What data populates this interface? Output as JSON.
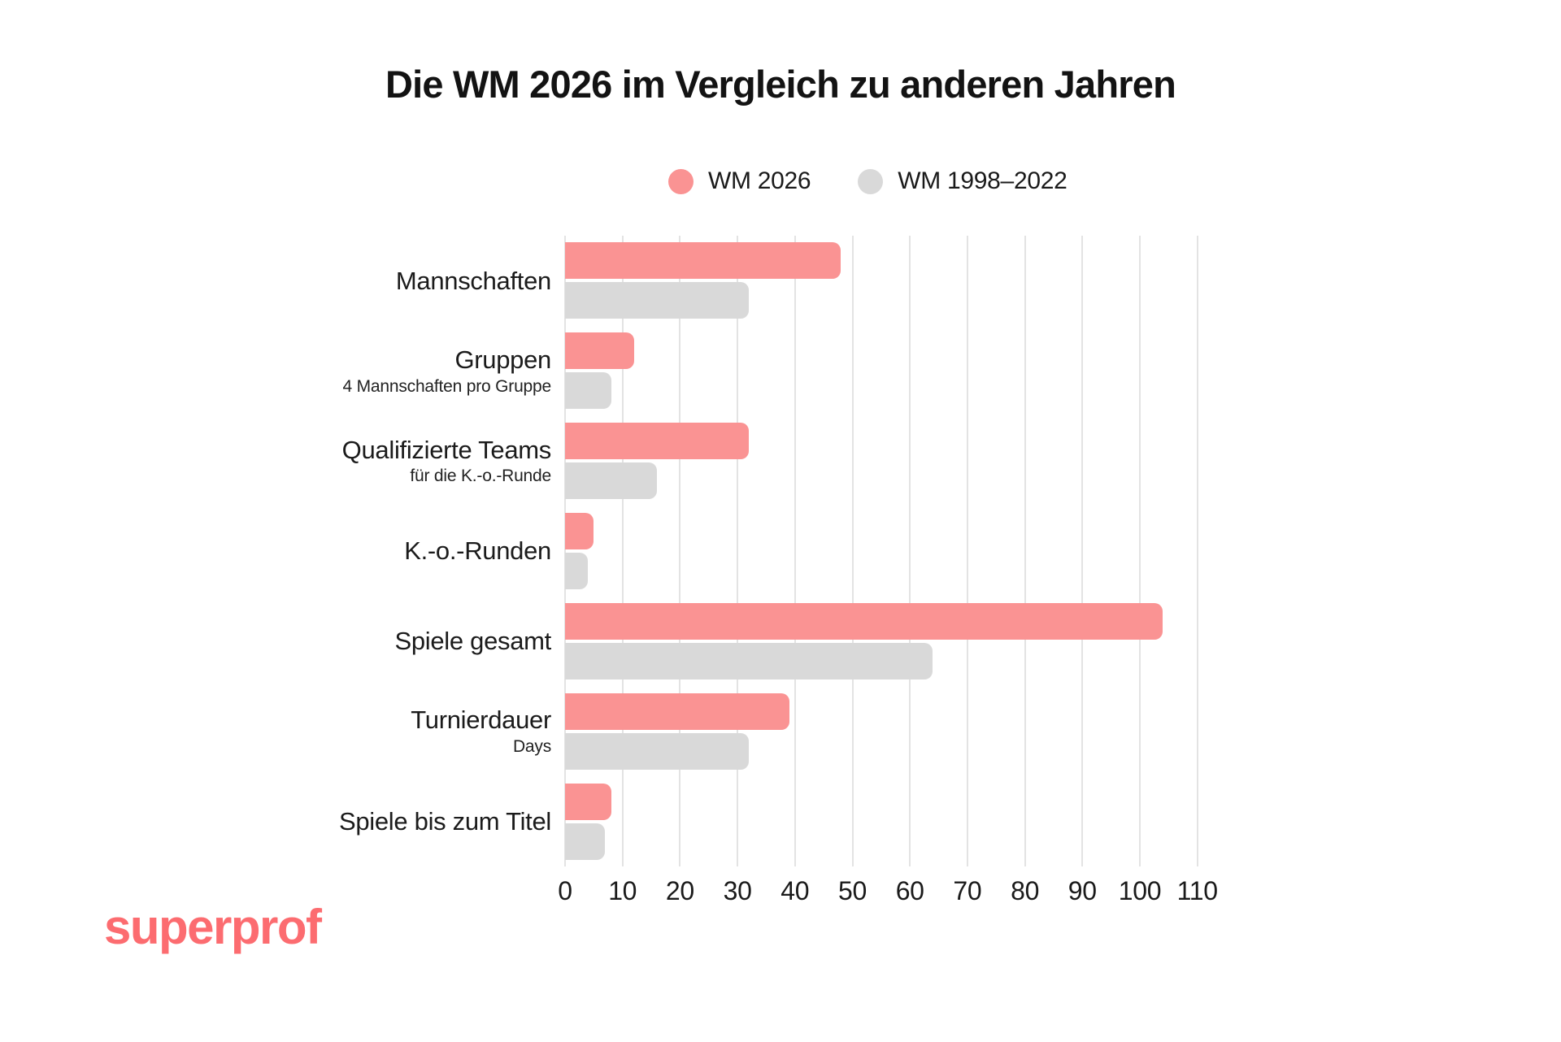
{
  "title": "Die WM 2026 im Vergleich zu anderen Jahren",
  "logo": {
    "text": "superprof",
    "color": "#FC6C70"
  },
  "colors": {
    "accent_pink": "#FA9393",
    "neutral_gray": "#D9D9D9",
    "gridline": "#E3E3E3",
    "text": "#161616"
  },
  "chart_data": {
    "type": "bar",
    "orientation": "horizontal",
    "title": "Die WM 2026 im Vergleich zu anderen Jahren",
    "categories": [
      {
        "label": "Mannschaften",
        "sublabel": ""
      },
      {
        "label": "Gruppen",
        "sublabel": "4 Mannschaften pro Gruppe"
      },
      {
        "label": "Qualifizierte Teams",
        "sublabel": "für die K.-o.-Runde"
      },
      {
        "label": "K.-o.-Runden",
        "sublabel": ""
      },
      {
        "label": "Spiele gesamt",
        "sublabel": ""
      },
      {
        "label": "Turnierdauer",
        "sublabel": "Days"
      },
      {
        "label": "Spiele bis zum Titel",
        "sublabel": ""
      }
    ],
    "series": [
      {
        "name": "WM 2026",
        "color": "#FA9393",
        "values": [
          48,
          12,
          32,
          5,
          104,
          39,
          8
        ]
      },
      {
        "name": "WM 1998–2022",
        "color": "#D9D9D9",
        "values": [
          32,
          8,
          16,
          4,
          64,
          32,
          7
        ]
      }
    ],
    "x_ticks": [
      0,
      10,
      20,
      30,
      40,
      50,
      60,
      70,
      80,
      90,
      100,
      110
    ],
    "xlim": [
      0,
      110
    ],
    "grid": true,
    "legend_position": "top-center",
    "xlabel": "",
    "ylabel": ""
  }
}
